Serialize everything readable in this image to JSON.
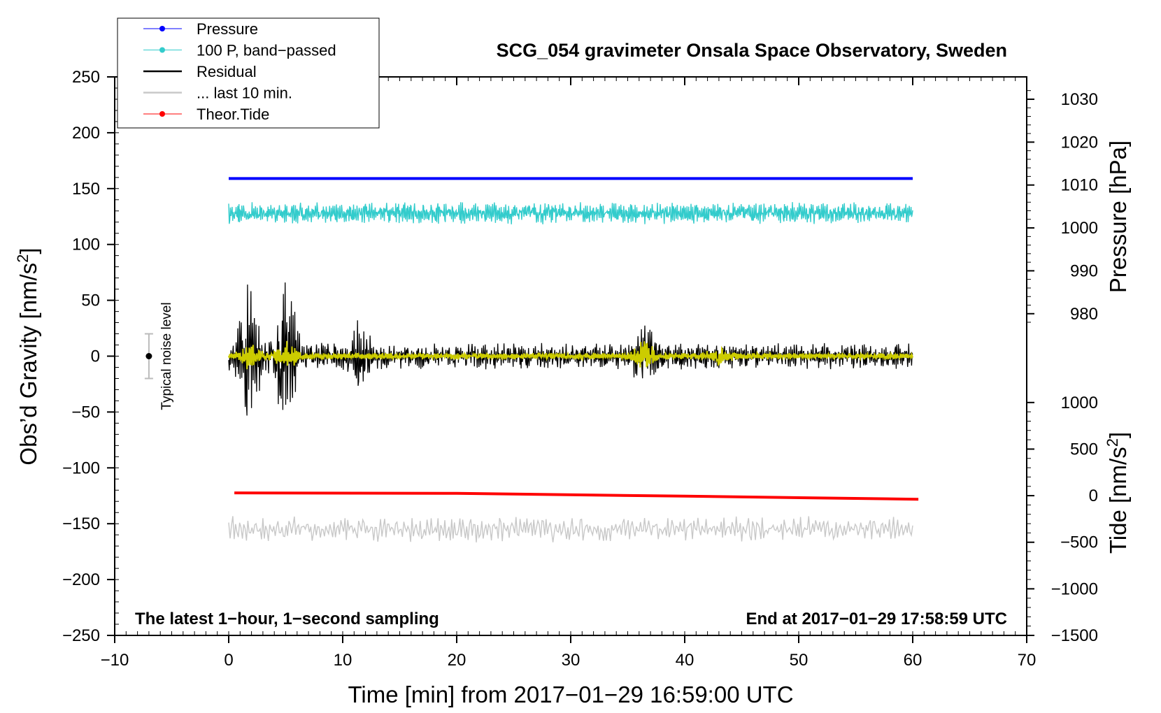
{
  "chart_data": {
    "type": "line",
    "title": "SCG_054 gravimeter Onsala Space Observatory, Sweden",
    "xlabel": "Time [min] from 2017−01−29 16:59:00 UTC",
    "ylabel_left": "Obs’d Gravity [nm/s",
    "ylabel_left_sup": "2",
    "ylabel_left_end": "]",
    "ylabel_right_pressure": "Pressure [hPa]",
    "ylabel_right_tide": "Tide [nm/s",
    "ylabel_right_tide_sup": "2",
    "ylabel_right_tide_end": "]",
    "xlim": [
      -10,
      70
    ],
    "ylim_left": [
      -250,
      250
    ],
    "x_ticks": [
      -10,
      0,
      10,
      20,
      30,
      40,
      50,
      60,
      70
    ],
    "x_tick_labels": [
      "−10",
      "0",
      "10",
      "20",
      "30",
      "40",
      "50",
      "60",
      "70"
    ],
    "y_ticks_left": [
      250,
      200,
      150,
      100,
      50,
      0,
      -50,
      -100,
      -150,
      -200,
      -250
    ],
    "y_tick_labels_left": [
      "250",
      "200",
      "150",
      "100",
      "50",
      "0",
      "−50",
      "−100",
      "−150",
      "−200",
      "−250"
    ],
    "pressure_axis": {
      "ticks": [
        1030,
        1020,
        1010,
        1000,
        990,
        980
      ],
      "labels": [
        "1030",
        "1020",
        "1010",
        "1000",
        "990",
        "980"
      ],
      "map": {
        "value_a": 1030,
        "gravity_a": 230,
        "value_b": 980,
        "gravity_b": 38
      }
    },
    "tide_axis": {
      "ticks": [
        1000,
        500,
        0,
        -500,
        -1000,
        -1500
      ],
      "labels": [
        "1000",
        "500",
        "0",
        "−500",
        "−1000",
        "−1500"
      ],
      "map": {
        "value_a": 1000,
        "gravity_a": -41.5,
        "value_b": -1500,
        "gravity_b": -250
      }
    },
    "series": [
      {
        "name": "Pressure",
        "color": "#0000ff",
        "kind": "flat",
        "x_range": [
          0,
          60
        ],
        "gravity_level": 159
      },
      {
        "name": "100 P, band−passed",
        "color": "#33cccc",
        "kind": "noise",
        "x_range": [
          0,
          60
        ],
        "gravity_level": 128,
        "amplitude": 10
      },
      {
        "name": "Residual",
        "color": "#000000",
        "kind": "noise",
        "x_range": [
          0,
          60
        ],
        "gravity_level": 0,
        "amplitude": 12,
        "bursts": [
          {
            "x": 1.8,
            "amp": 55
          },
          {
            "x": 5.0,
            "amp": 70
          },
          {
            "x": 11.5,
            "amp": 22
          },
          {
            "x": 36.5,
            "amp": 22
          }
        ]
      },
      {
        "name": "... last 10 min.",
        "color": "#c8c8c8",
        "kind": "noise",
        "x_range": [
          0,
          60
        ],
        "gravity_level": -155,
        "amplitude": 12
      },
      {
        "name": "Theor.Tide",
        "color": "#ff0000",
        "kind": "line",
        "points": [
          [
            0.5,
            30
          ],
          [
            20,
            25
          ],
          [
            40,
            -5
          ],
          [
            60.5,
            -38
          ]
        ],
        "axis": "tide"
      },
      {
        "name": "",
        "color": "#cccc00",
        "kind": "noise",
        "x_range": [
          0,
          60
        ],
        "gravity_level": 0,
        "amplitude": 3,
        "bursts": [
          {
            "x": 1.8,
            "amp": 10
          },
          {
            "x": 5.0,
            "amp": 11
          },
          {
            "x": 36.5,
            "amp": 12
          },
          {
            "x": 43.0,
            "amp": 8
          }
        ]
      }
    ],
    "legend": {
      "placement": "top-left",
      "entries": [
        {
          "label": "Pressure",
          "color": "#0000ff",
          "marker": true,
          "width": 1
        },
        {
          "label": "100 P, band−passed",
          "color": "#33cccc",
          "marker": true,
          "width": 1
        },
        {
          "label": "Residual",
          "color": "#000000",
          "marker": false,
          "width": 2.5
        },
        {
          "label": "... last 10 min.",
          "color": "#c8c8c8",
          "marker": false,
          "width": 2.5
        },
        {
          "label": "Theor.Tide",
          "color": "#ff0000",
          "marker": true,
          "width": 1
        }
      ]
    },
    "noise_indicator": {
      "label": "Typical noise level",
      "x": -7,
      "center": 0,
      "half_range": 20
    },
    "annotations": {
      "bottom_left": "The latest 1−hour, 1−second sampling",
      "bottom_right": "End at 2017−01−29 17:58:59 UTC"
    }
  }
}
